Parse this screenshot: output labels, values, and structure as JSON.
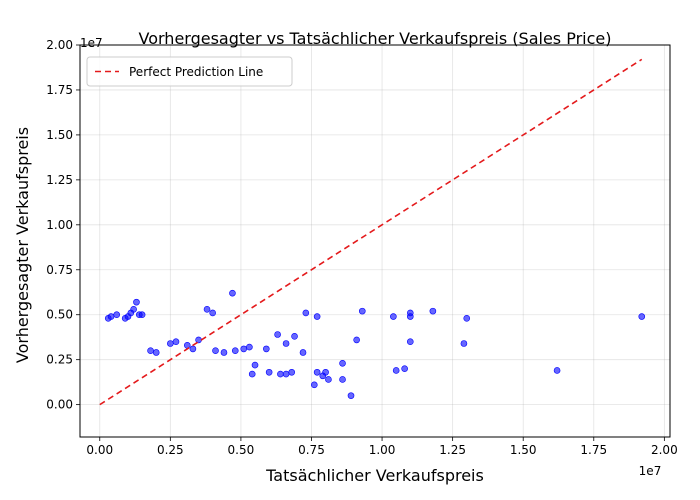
{
  "chart_data": {
    "type": "scatter",
    "title": "Vorhergesagter vs Tatsächlicher Verkaufspreis (Sales Price)",
    "xlabel": "Tatsächlicher Verkaufspreis",
    "ylabel": "Vorhergesagter Verkaufspreis",
    "x_offset_label": "1e7",
    "y_offset_label": "1e7",
    "xlim": [
      -700000.0,
      20200000.0
    ],
    "ylim": [
      -1800000.0,
      20000000.0
    ],
    "x_ticks": [
      0,
      2500000,
      5000000,
      7500000,
      10000000,
      12500000,
      15000000,
      17500000,
      20000000
    ],
    "x_tick_labels": [
      "0.00",
      "0.25",
      "0.50",
      "0.75",
      "1.00",
      "1.25",
      "1.50",
      "1.75",
      "2.00"
    ],
    "y_ticks": [
      0,
      2500000,
      5000000,
      7500000,
      10000000,
      12500000,
      15000000,
      17500000,
      20000000
    ],
    "y_tick_labels": [
      "0.00",
      "0.25",
      "0.50",
      "0.75",
      "1.00",
      "1.25",
      "1.50",
      "1.75",
      "2.00"
    ],
    "grid": true,
    "point_color": "#0000ff",
    "line_color": "#e41a1c",
    "legend": {
      "position": "upper-left",
      "entries": [
        "Perfect Prediction Line"
      ]
    },
    "reference_line": {
      "name": "Perfect Prediction Line",
      "x": [
        0,
        19200000
      ],
      "y": [
        0,
        19200000
      ]
    },
    "series": [
      {
        "x": [
          6300000,
          9300000,
          10400000,
          11000000,
          11000000,
          11800000,
          13000000,
          19200000,
          12900000,
          16200000,
          7300000,
          7700000,
          6600000,
          6900000,
          9100000,
          8600000,
          11000000,
          10500000,
          10800000,
          8900000,
          7900000,
          8000000,
          7600000,
          7700000,
          8100000,
          8600000,
          7200000,
          6400000,
          6600000,
          6800000,
          4700000,
          3800000,
          4000000,
          1300000,
          1200000,
          600000,
          1000000,
          400000,
          300000,
          900000,
          1100000,
          1400000,
          1500000,
          5300000,
          5100000,
          4800000,
          5500000,
          6000000,
          5900000,
          5400000,
          3500000,
          2700000,
          2500000,
          3300000,
          4100000,
          4400000,
          3100000,
          2000000,
          1800000
        ],
        "y": [
          3900000,
          5200000,
          4900000,
          4900000,
          5100000,
          5200000,
          4800000,
          4900000,
          3400000,
          1900000,
          5100000,
          4900000,
          3400000,
          3800000,
          3600000,
          2300000,
          3500000,
          1900000,
          2000000,
          500000,
          1600000,
          1800000,
          1100000,
          1800000,
          1400000,
          1400000,
          2900000,
          1700000,
          1700000,
          1800000,
          6200000,
          5300000,
          5100000,
          5700000,
          5300000,
          5000000,
          4900000,
          4900000,
          4800000,
          4800000,
          5100000,
          5000000,
          5000000,
          3200000,
          3100000,
          3000000,
          2200000,
          1800000,
          3100000,
          1700000,
          3600000,
          3500000,
          3400000,
          3100000,
          3000000,
          2900000,
          3300000,
          2900000,
          3000000
        ]
      }
    ]
  }
}
